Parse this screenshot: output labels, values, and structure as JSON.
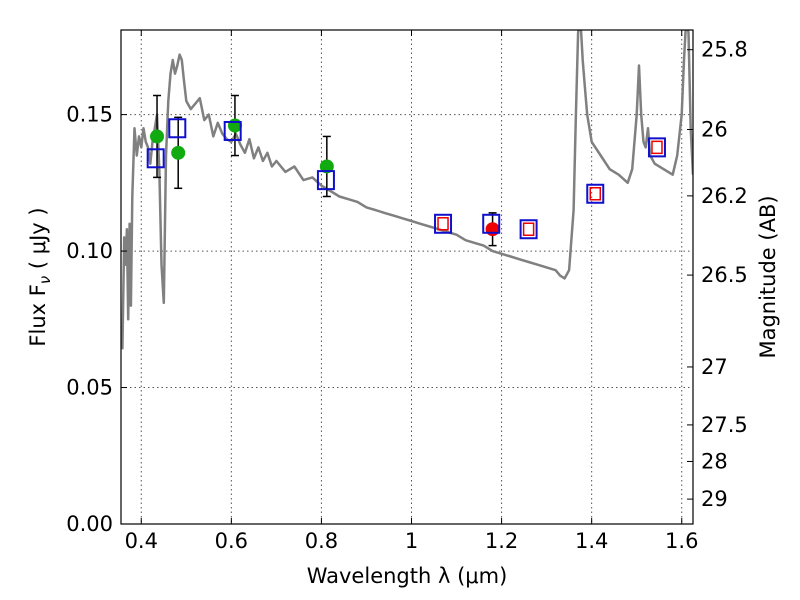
{
  "chart_data": {
    "type": "scatter",
    "xlabel": "Wavelength  λ (μm)",
    "ylabel_prefix": "Flux  F",
    "ylabel_subscript": "ν",
    "ylabel_suffix": "  ( μJy )",
    "y2label": "Magnitude (AB)",
    "xlim": [
      0.355,
      1.625
    ],
    "ylim": [
      0.0,
      0.181
    ],
    "grid": true,
    "x_ticks": [
      {
        "value": 0.4,
        "label": "0.4"
      },
      {
        "value": 0.6,
        "label": "0.6"
      },
      {
        "value": 0.8,
        "label": "0.8"
      },
      {
        "value": 1.0,
        "label": "1"
      },
      {
        "value": 1.2,
        "label": "1.2"
      },
      {
        "value": 1.4,
        "label": "1.4"
      },
      {
        "value": 1.6,
        "label": "1.6"
      }
    ],
    "y_ticks": [
      {
        "value": 0.0,
        "label": "0.00"
      },
      {
        "value": 0.05,
        "label": "0.05"
      },
      {
        "value": 0.1,
        "label": "0.10"
      },
      {
        "value": 0.15,
        "label": "0.15"
      }
    ],
    "y2_ticks": [
      {
        "value": 25.8,
        "label": "25.8"
      },
      {
        "value": 26.0,
        "label": "26"
      },
      {
        "value": 26.2,
        "label": "26.2"
      },
      {
        "value": 26.5,
        "label": "26.5"
      },
      {
        "value": 27.0,
        "label": "27"
      },
      {
        "value": 27.5,
        "label": "27.5"
      },
      {
        "value": 28.0,
        "label": "28"
      },
      {
        "value": 29.0,
        "label": "29"
      }
    ],
    "colors": {
      "sed_line": "#808080",
      "green_points": "#11aa11",
      "red_points": "#ee0000",
      "model_squares": "#1010cc",
      "model_squares_inner": "#ee0000",
      "error_bars": "#000000",
      "grid": "#555555"
    },
    "sed_model": {
      "x": [
        0.358,
        0.362,
        0.365,
        0.368,
        0.371,
        0.374,
        0.377,
        0.38,
        0.385,
        0.39,
        0.395,
        0.4,
        0.405,
        0.41,
        0.415,
        0.42,
        0.425,
        0.43,
        0.435,
        0.44,
        0.445,
        0.45,
        0.455,
        0.46,
        0.465,
        0.47,
        0.475,
        0.48,
        0.485,
        0.49,
        0.495,
        0.5,
        0.51,
        0.52,
        0.53,
        0.54,
        0.55,
        0.56,
        0.57,
        0.58,
        0.59,
        0.6,
        0.61,
        0.62,
        0.63,
        0.64,
        0.65,
        0.66,
        0.67,
        0.68,
        0.69,
        0.7,
        0.72,
        0.74,
        0.76,
        0.78,
        0.8,
        0.82,
        0.84,
        0.86,
        0.88,
        0.9,
        0.92,
        0.94,
        0.96,
        0.98,
        1.0,
        1.02,
        1.04,
        1.06,
        1.08,
        1.1,
        1.12,
        1.14,
        1.16,
        1.18,
        1.2,
        1.22,
        1.24,
        1.26,
        1.28,
        1.3,
        1.32,
        1.33,
        1.34,
        1.35,
        1.36,
        1.365,
        1.37,
        1.375,
        1.38,
        1.385,
        1.39,
        1.4,
        1.42,
        1.44,
        1.46,
        1.48,
        1.49,
        1.5,
        1.505,
        1.51,
        1.515,
        1.52,
        1.525,
        1.53,
        1.54,
        1.56,
        1.58,
        1.59,
        1.6,
        1.605,
        1.61,
        1.615,
        1.62,
        1.625
      ],
      "y": [
        0.064,
        0.105,
        0.095,
        0.108,
        0.075,
        0.11,
        0.08,
        0.12,
        0.145,
        0.135,
        0.142,
        0.138,
        0.145,
        0.14,
        0.138,
        0.132,
        0.14,
        0.145,
        0.15,
        0.13,
        0.095,
        0.081,
        0.135,
        0.155,
        0.165,
        0.17,
        0.165,
        0.168,
        0.172,
        0.17,
        0.162,
        0.155,
        0.152,
        0.154,
        0.156,
        0.148,
        0.15,
        0.142,
        0.147,
        0.143,
        0.141,
        0.14,
        0.143,
        0.139,
        0.136,
        0.141,
        0.134,
        0.138,
        0.133,
        0.136,
        0.131,
        0.133,
        0.129,
        0.131,
        0.126,
        0.127,
        0.124,
        0.122,
        0.12,
        0.119,
        0.118,
        0.116,
        0.115,
        0.114,
        0.113,
        0.112,
        0.111,
        0.11,
        0.109,
        0.108,
        0.107,
        0.106,
        0.104,
        0.103,
        0.102,
        0.1,
        0.099,
        0.098,
        0.097,
        0.096,
        0.095,
        0.094,
        0.093,
        0.091,
        0.09,
        0.093,
        0.115,
        0.15,
        0.18,
        0.185,
        0.17,
        0.16,
        0.15,
        0.14,
        0.135,
        0.13,
        0.128,
        0.125,
        0.13,
        0.15,
        0.168,
        0.15,
        0.14,
        0.138,
        0.145,
        0.135,
        0.132,
        0.13,
        0.128,
        0.135,
        0.15,
        0.17,
        0.185,
        0.18,
        0.145,
        0.128
      ]
    },
    "series": [
      {
        "color_key": "green_points",
        "points": [
          {
            "x": 0.435,
            "y": 0.142,
            "yerr": 0.015
          },
          {
            "x": 0.482,
            "y": 0.136,
            "yerr": 0.013
          },
          {
            "x": 0.608,
            "y": 0.146,
            "yerr": 0.011
          },
          {
            "x": 0.812,
            "y": 0.131,
            "yerr": 0.011
          }
        ]
      },
      {
        "color_key": "red_points",
        "points": [
          {
            "x": 1.18,
            "y": 0.108,
            "yerr": 0.006
          }
        ]
      }
    ],
    "model_bandpass": [
      {
        "x": 0.432,
        "y": 0.134,
        "inner": false
      },
      {
        "x": 0.48,
        "y": 0.145,
        "inner": false
      },
      {
        "x": 0.603,
        "y": 0.144,
        "inner": false
      },
      {
        "x": 0.81,
        "y": 0.126,
        "inner": false
      },
      {
        "x": 1.07,
        "y": 0.11,
        "inner": true
      },
      {
        "x": 1.177,
        "y": 0.11,
        "inner": false
      },
      {
        "x": 1.26,
        "y": 0.108,
        "inner": true
      },
      {
        "x": 1.408,
        "y": 0.121,
        "inner": true
      },
      {
        "x": 1.545,
        "y": 0.138,
        "inner": true
      }
    ]
  }
}
